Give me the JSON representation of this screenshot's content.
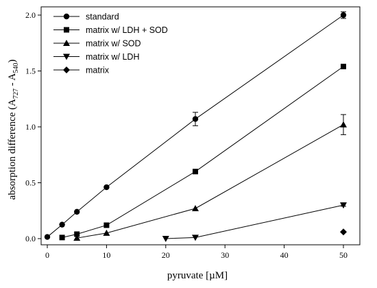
{
  "chart_data": {
    "type": "line",
    "xlabel": "pyruvate [µM]",
    "ylabel": "absorption difference (A",
    "ylabel_sub1": "727",
    "ylabel_mid": " - A",
    "ylabel_sub2": "540",
    "ylabel_end": ")",
    "xlim": [
      0,
      50
    ],
    "ylim": [
      0,
      2.0
    ],
    "x_ticks": [
      0,
      10,
      20,
      30,
      40,
      50
    ],
    "x_tick_labels": [
      "0",
      "10",
      "20",
      "30",
      "40",
      "50"
    ],
    "y_ticks": [
      0,
      0.5,
      1.0,
      1.5,
      2.0
    ],
    "y_tick_labels": [
      "0.0",
      "0.5",
      "1.0",
      "1.5",
      "2.0"
    ],
    "grid": false,
    "legend_position": "top-left",
    "series": [
      {
        "name": "standard",
        "marker": "circle",
        "x": [
          0,
          2.5,
          5,
          10,
          25,
          50
        ],
        "y": [
          0.015,
          0.125,
          0.24,
          0.46,
          1.07,
          2.0
        ],
        "err": [
          0,
          0,
          0,
          0,
          0.06,
          0.03
        ]
      },
      {
        "name": "matrix w/ LDH + SOD",
        "marker": "square",
        "x": [
          2.5,
          5,
          10,
          25,
          50
        ],
        "y": [
          0.01,
          0.04,
          0.12,
          0.6,
          1.54
        ],
        "err": [
          0,
          0,
          0,
          0.02,
          0.02
        ]
      },
      {
        "name": "matrix w/ SOD",
        "marker": "triangle-up",
        "x": [
          5,
          10,
          25,
          50
        ],
        "y": [
          0.005,
          0.05,
          0.27,
          1.02
        ],
        "err": [
          0,
          0,
          0,
          0.09
        ]
      },
      {
        "name": "matrix w/ LDH",
        "marker": "triangle-down",
        "x": [
          20,
          25,
          50
        ],
        "y": [
          0,
          0.01,
          0.3
        ],
        "err": [
          0,
          0,
          0.01
        ]
      },
      {
        "name": "matrix",
        "marker": "diamond",
        "x": [
          50
        ],
        "y": [
          0.06
        ],
        "err": [
          0
        ]
      }
    ]
  }
}
